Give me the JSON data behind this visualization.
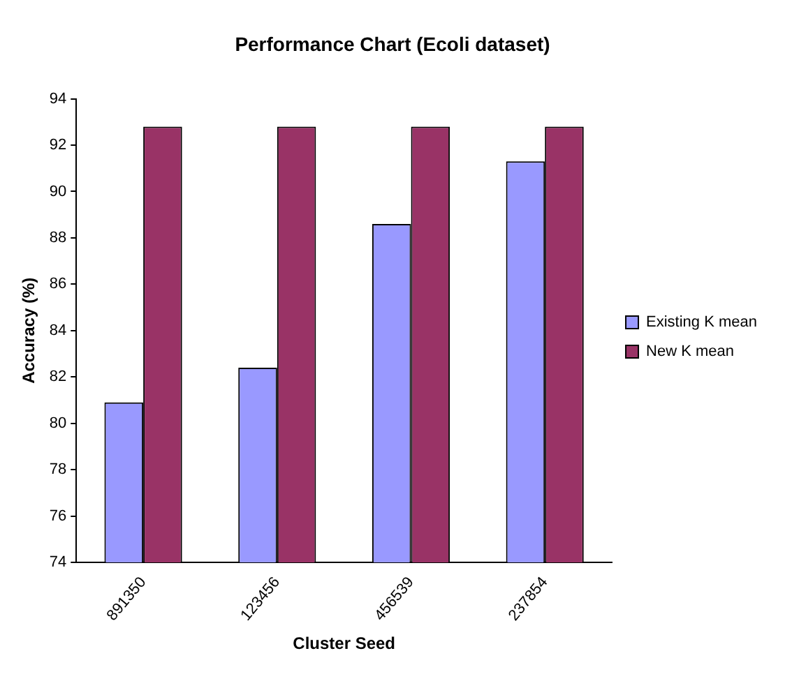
{
  "chart_data": {
    "type": "bar",
    "title": "Performance Chart (Ecoli dataset)",
    "xlabel": "Cluster Seed",
    "ylabel": "Accuracy (%)",
    "categories": [
      "891350",
      "123456",
      "456539",
      "237854"
    ],
    "series": [
      {
        "name": "Existing K mean",
        "color": "#9999ff",
        "values": [
          80.9,
          82.4,
          88.6,
          91.3
        ]
      },
      {
        "name": "New K mean",
        "color": "#993366",
        "values": [
          92.8,
          92.8,
          92.8,
          92.8
        ]
      }
    ],
    "ylim": [
      74,
      94
    ],
    "yticks": [
      74,
      76,
      78,
      80,
      82,
      84,
      86,
      88,
      90,
      92,
      94
    ],
    "grid": false,
    "legend": "right"
  }
}
